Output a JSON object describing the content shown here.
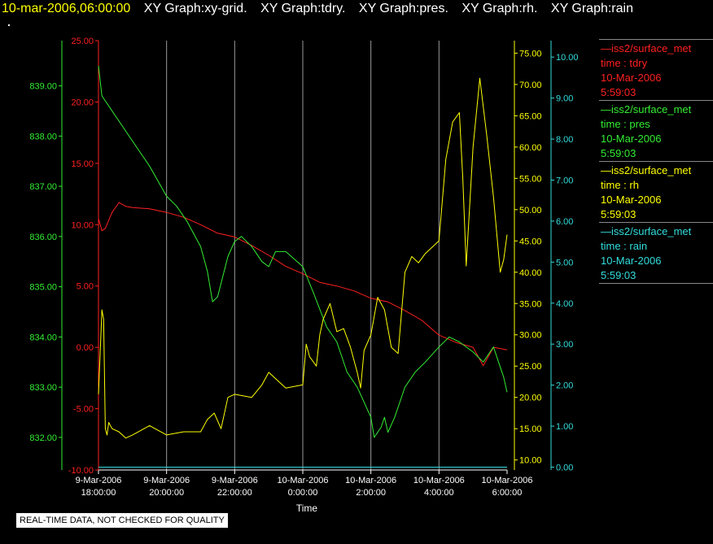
{
  "header": {
    "datetime": "10-mar-2006,06:00:00",
    "graphs": [
      "XY Graph:xy-grid.",
      "XY Graph:tdry.",
      "XY Graph:pres.",
      "XY Graph:rh.",
      "XY Graph:rain"
    ]
  },
  "quality_notice": "REAL-TIME DATA, NOT CHECKED FOR QUALITY",
  "legend": [
    {
      "platform": "—iss2/surface_met",
      "variable": "time : tdry",
      "date": "10-Mar-2006",
      "time": "5:59:03",
      "color": "#ff2020"
    },
    {
      "platform": "—iss2/surface_met",
      "variable": "time : pres",
      "date": "10-Mar-2006",
      "time": "5:59:03",
      "color": "#33ee33"
    },
    {
      "platform": "—iss2/surface_met",
      "variable": "time : rh",
      "date": "10-Mar-2006",
      "time": "5:59:03",
      "color": "#ffff00"
    },
    {
      "platform": "—iss2/surface_met",
      "variable": "time : rain",
      "date": "10-Mar-2006",
      "time": "5:59:03",
      "color": "#33dddd"
    }
  ],
  "chart_data": {
    "type": "line",
    "xlabel": "Time",
    "x_ticks": [
      {
        "date": "9-Mar-2006",
        "time": "18:00:00",
        "hour": 0
      },
      {
        "date": "9-Mar-2006",
        "time": "20:00:00",
        "hour": 2
      },
      {
        "date": "9-Mar-2006",
        "time": "22:00:00",
        "hour": 4
      },
      {
        "date": "10-Mar-2006",
        "time": "0:00:00",
        "hour": 6
      },
      {
        "date": "10-Mar-2006",
        "time": "2:00:00",
        "hour": 8
      },
      {
        "date": "10-Mar-2006",
        "time": "4:00:00",
        "hour": 10
      },
      {
        "date": "10-Mar-2006",
        "time": "6:00:00",
        "hour": 12
      }
    ],
    "grid": "vertical",
    "axes": {
      "tdry": {
        "side": "left-inner",
        "color": "#ff2020",
        "ylim": [
          -10,
          25
        ],
        "ticks": [
          "-10.00",
          "-5.00",
          "0.00",
          "5.00",
          "10.00",
          "15.00",
          "20.00",
          "25.00"
        ]
      },
      "pres": {
        "side": "left-outer",
        "color": "#33ee33",
        "ylim": [
          831.35,
          839.9
        ],
        "ticks": [
          "832.00",
          "833.00",
          "834.00",
          "835.00",
          "836.00",
          "837.00",
          "838.00",
          "839.00"
        ]
      },
      "rh": {
        "side": "right-inner",
        "color": "#ffff00",
        "ylim": [
          8.4,
          77.0
        ],
        "ticks": [
          "10.00",
          "15.00",
          "20.00",
          "25.00",
          "30.00",
          "35.00",
          "40.00",
          "45.00",
          "50.00",
          "55.00",
          "60.00",
          "65.00",
          "70.00",
          "75.00"
        ]
      },
      "rain": {
        "side": "right-outer",
        "color": "#33dddd",
        "ylim": [
          -0.07,
          10.4
        ],
        "ticks": [
          "0.00",
          "1.00",
          "2.00",
          "3.00",
          "4.00",
          "5.00",
          "6.00",
          "7.00",
          "8.00",
          "9.00",
          "10.00"
        ]
      }
    },
    "series": [
      {
        "key": "tdry",
        "color": "#ff2020",
        "x": [
          0,
          0.1,
          0.2,
          0.4,
          0.6,
          0.8,
          1.0,
          1.5,
          2.0,
          2.5,
          3.0,
          3.5,
          4.0,
          4.5,
          5.0,
          5.5,
          6.0,
          6.5,
          7.0,
          7.5,
          8.0,
          8.5,
          9.0,
          9.5,
          10.0,
          10.5,
          11.0,
          11.3,
          11.6,
          12.0
        ],
        "y": [
          10.5,
          9.5,
          9.7,
          11.0,
          11.8,
          11.5,
          11.4,
          11.3,
          11.0,
          10.6,
          10.0,
          9.3,
          9.0,
          8.3,
          7.5,
          6.6,
          6.0,
          5.3,
          5.0,
          4.6,
          4.0,
          3.7,
          3.0,
          2.2,
          1.0,
          0.4,
          0.0,
          -1.5,
          0.0,
          -0.2
        ]
      },
      {
        "key": "pres",
        "color": "#33ee33",
        "x": [
          0,
          0.05,
          0.1,
          0.2,
          0.5,
          1.0,
          1.5,
          2.0,
          2.3,
          2.6,
          3.0,
          3.2,
          3.35,
          3.5,
          3.8,
          4.0,
          4.2,
          4.5,
          4.8,
          5.0,
          5.2,
          5.5,
          6.0,
          6.3,
          6.7,
          7.0,
          7.3,
          7.6,
          7.8,
          8.0,
          8.1,
          8.3,
          8.4,
          8.5,
          8.7,
          9.0,
          9.3,
          9.6,
          10.0,
          10.3,
          10.6,
          11.0,
          11.3,
          11.6,
          11.9,
          12.0
        ],
        "y": [
          839.4,
          839.1,
          838.8,
          838.7,
          838.4,
          837.9,
          837.4,
          836.8,
          836.6,
          836.3,
          835.8,
          835.3,
          834.7,
          834.8,
          835.6,
          835.9,
          836.0,
          835.8,
          835.5,
          835.4,
          835.7,
          835.7,
          835.4,
          834.9,
          834.2,
          833.9,
          833.3,
          833.0,
          832.7,
          832.4,
          832.0,
          832.2,
          832.4,
          832.1,
          832.4,
          833.0,
          833.3,
          833.5,
          833.8,
          834.0,
          833.9,
          833.7,
          833.5,
          833.8,
          833.2,
          832.9
        ]
      },
      {
        "key": "rh",
        "color": "#ffff00",
        "x": [
          0,
          0.1,
          0.15,
          0.2,
          0.25,
          0.3,
          0.4,
          0.6,
          0.8,
          1.0,
          1.5,
          2.0,
          2.5,
          3.0,
          3.2,
          3.4,
          3.6,
          3.8,
          4.0,
          4.5,
          4.8,
          5.0,
          5.5,
          6.0,
          6.1,
          6.2,
          6.4,
          6.5,
          6.6,
          6.8,
          7.0,
          7.2,
          7.4,
          7.6,
          7.7,
          7.8,
          8.0,
          8.2,
          8.4,
          8.6,
          8.8,
          9.0,
          9.2,
          9.4,
          9.6,
          10.0,
          10.2,
          10.4,
          10.6,
          10.7,
          10.8,
          11.0,
          11.2,
          11.4,
          11.6,
          11.8,
          11.9,
          12.0
        ],
        "y": [
          20.5,
          34.0,
          32.5,
          15.0,
          14.0,
          16.0,
          15.0,
          14.5,
          13.5,
          14.0,
          15.5,
          14.0,
          14.5,
          14.5,
          16.5,
          17.5,
          15.0,
          20.0,
          20.5,
          20.0,
          22.0,
          24.0,
          21.5,
          22.0,
          28.5,
          26.5,
          25.0,
          30.0,
          32.5,
          35.0,
          30.5,
          31.0,
          28.0,
          24.0,
          21.5,
          27.5,
          30.0,
          36.0,
          34.0,
          28.0,
          27.0,
          40.0,
          42.5,
          41.5,
          43.0,
          45.0,
          58.0,
          64.0,
          65.5,
          55.0,
          41.0,
          60.0,
          71.0,
          62.0,
          52.0,
          40.0,
          42.0,
          46.0
        ]
      },
      {
        "key": "rain",
        "color": "#33dddd",
        "x": [
          0,
          12
        ],
        "y": [
          0,
          0
        ]
      }
    ]
  }
}
